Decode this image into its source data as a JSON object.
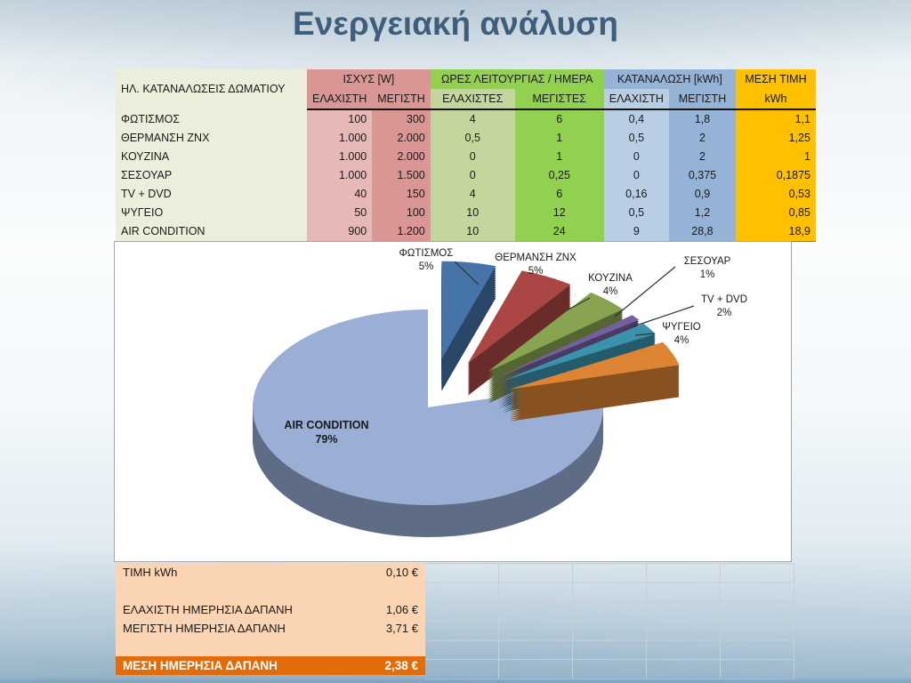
{
  "slide": {
    "title": "Ενεργειακή ανάλυση"
  },
  "theme": {
    "title_color": "#3e5e7c",
    "red_header": "#d99694",
    "red_light": "#e6b9b7",
    "green_header": "#92d050",
    "green_light": "#c3d69b",
    "blue_header": "#95b3d7",
    "blue_light": "#b9cde5",
    "amber": "#ffc000",
    "label_column": "#eaeedb",
    "cost_light_orange": "#fbd4b4",
    "cost_dark_orange": "#e36c0a"
  },
  "consumption_table": {
    "corner_header": "ΗΛ. ΚΑΤΑΝΑΛΩΣΕΙΣ ΔΩΜΑΤΙΟΥ",
    "group_headers": {
      "power": "ΙΣΧΥΣ [W]",
      "hours": "ΩΡΕΣ ΛΕΙΤΟΥΡΓΙΑΣ / ΗΜΕΡΑ",
      "consumption": "ΚΑΤΑΝΑΛΩΣΗ [kWh]",
      "mean": "ΜΕΣΗ ΤΙΜΗ"
    },
    "sub_headers": {
      "power_min": "ΕΛΑΧΙΣΤΗ",
      "power_max": "ΜΕΓΙΣΤΗ",
      "hours_min": "ΕΛΑΧΙΣΤΕΣ",
      "hours_max": "ΜΕΓΙΣΤΕΣ",
      "cons_min": "ΕΛΑΧΙΣΤΗ",
      "cons_max": "ΜΕΓΙΣΤΗ",
      "mean_unit": "kWh"
    },
    "rows": [
      {
        "label": "ΦΩΤΙΣΜΟΣ",
        "values": [
          "100",
          "300",
          "4",
          "6",
          "0,4",
          "1,8",
          "1,1"
        ]
      },
      {
        "label": "ΘΕΡΜΑΝΣΗ ΖΝΧ",
        "values": [
          "1.000",
          "2.000",
          "0,5",
          "1",
          "0,5",
          "2",
          "1,25"
        ]
      },
      {
        "label": "ΚΟΥΖΙΝΑ",
        "values": [
          "1.000",
          "2.000",
          "0",
          "1",
          "0",
          "2",
          "1"
        ]
      },
      {
        "label": "ΣΕΣΟΥΑΡ",
        "values": [
          "1.000",
          "1.500",
          "0",
          "0,25",
          "0",
          "0,375",
          "0,1875"
        ]
      },
      {
        "label": "TV + DVD",
        "values": [
          "40",
          "150",
          "4",
          "6",
          "0,16",
          "0,9",
          "0,53"
        ]
      },
      {
        "label": "ΨΥΓΕΙΟ",
        "values": [
          "50",
          "100",
          "10",
          "12",
          "0,5",
          "1,2",
          "0,85"
        ]
      },
      {
        "label": "AIR CONDITION",
        "values": [
          "900",
          "1.200",
          "10",
          "24",
          "9",
          "28,8",
          "18,9"
        ]
      }
    ]
  },
  "chart_data": {
    "type": "pie",
    "style": "3d-exploded",
    "labels": [
      "ΦΩΤΙΣΜΟΣ",
      "ΘΕΡΜΑΝΣΗ ΖΝΧ",
      "ΚΟΥΖΙΝΑ",
      "ΣΕΣΟΥΑΡ",
      "TV + DVD",
      "ΨΥΓΕΙΟ",
      "AIR CONDITION"
    ],
    "values_percent": [
      5,
      5,
      4,
      1,
      2,
      4,
      79
    ],
    "percent_labels": [
      "5%",
      "5%",
      "4%",
      "1%",
      "2%",
      "4%",
      "79%"
    ],
    "colors": [
      "#4673a8",
      "#aa4744",
      "#89a450",
      "#7460a0",
      "#3b92ac",
      "#dc8434",
      "#9aaed6"
    ],
    "exploded": [
      true,
      true,
      true,
      true,
      true,
      true,
      false
    ],
    "legend_position": "none",
    "title": ""
  },
  "cost_table": {
    "rows": [
      {
        "label": "ΤΙΜΗ kWh",
        "value": "0,10 €",
        "highlight": false
      },
      {
        "label": "",
        "value": "",
        "highlight": false
      },
      {
        "label": "ΕΛΑΧΙΣΤΗ ΗΜΕΡΗΣΙΑ ΔΑΠΑΝΗ",
        "value": "1,06 €",
        "highlight": false
      },
      {
        "label": "ΜΕΓΙΣΤΗ ΗΜΕΡΗΣΙΑ ΔΑΠΑΝΗ",
        "value": "3,71 €",
        "highlight": false
      },
      {
        "label": "",
        "value": "",
        "highlight": false
      },
      {
        "label": "ΜΕΣΗ ΗΜΕΡΗΣΙΑ ΔΑΠΑΝΗ",
        "value": "2,38 €",
        "highlight": true
      }
    ]
  }
}
